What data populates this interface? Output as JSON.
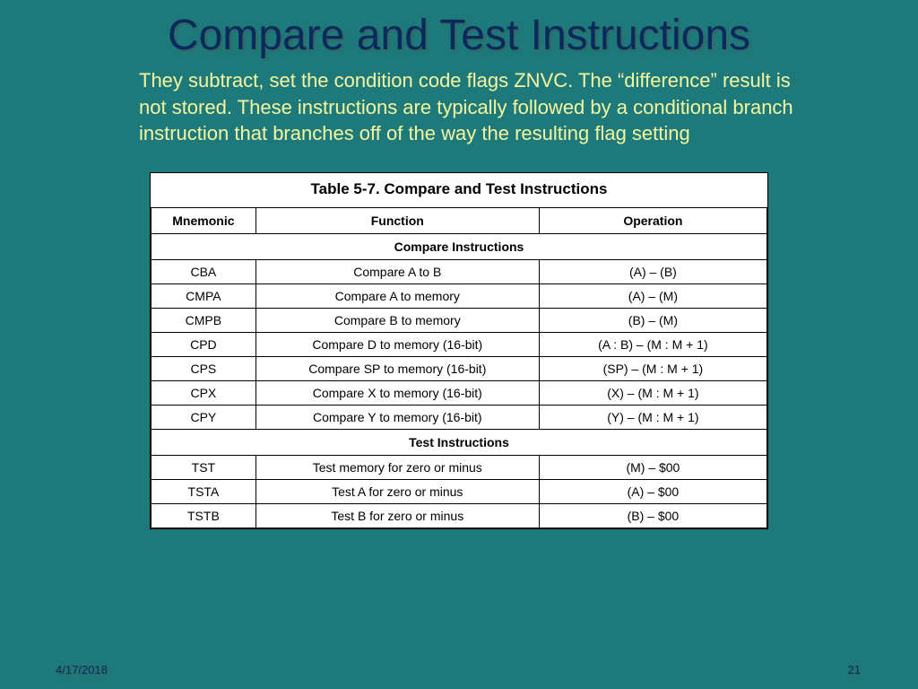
{
  "title": "Compare and Test Instructions",
  "description": "They subtract, set the condition code flags ZNVC.  The “difference” result is not stored.  These instructions are typically followed by a conditional branch instruction that branches off of the way the resulting flag setting",
  "table": {
    "caption": "Table 5-7. Compare and Test Instructions",
    "columns": [
      "Mnemonic",
      "Function",
      "Operation"
    ],
    "section1": {
      "label": "Compare Instructions",
      "rows": [
        [
          "CBA",
          "Compare A to B",
          "(A) – (B)"
        ],
        [
          "CMPA",
          "Compare A to memory",
          "(A) – (M)"
        ],
        [
          "CMPB",
          "Compare B to memory",
          "(B) – (M)"
        ],
        [
          "CPD",
          "Compare D to memory (16-bit)",
          "(A : B) – (M : M + 1)"
        ],
        [
          "CPS",
          "Compare SP to memory (16-bit)",
          "(SP) – (M : M + 1)"
        ],
        [
          "CPX",
          "Compare X to memory (16-bit)",
          "(X) – (M : M + 1)"
        ],
        [
          "CPY",
          "Compare Y to memory (16-bit)",
          "(Y) – (M : M + 1)"
        ]
      ]
    },
    "section2": {
      "label": "Test Instructions",
      "rows": [
        [
          "TST",
          "Test memory for zero or minus",
          "(M) – $00"
        ],
        [
          "TSTA",
          "Test A for zero or minus",
          "(A) – $00"
        ],
        [
          "TSTB",
          "Test B for zero or minus",
          "(B) – $00"
        ]
      ]
    }
  },
  "footer": {
    "date": "4/17/2018",
    "page": "21"
  },
  "style": {
    "background_color": "#1e7a7a",
    "title_color": "#0a2a5c",
    "description_color": "#f5f5a0",
    "table_bg": "#ffffff",
    "border_color": "#000000",
    "title_fontsize": 48,
    "description_fontsize": 22,
    "table_fontsize": 14
  }
}
